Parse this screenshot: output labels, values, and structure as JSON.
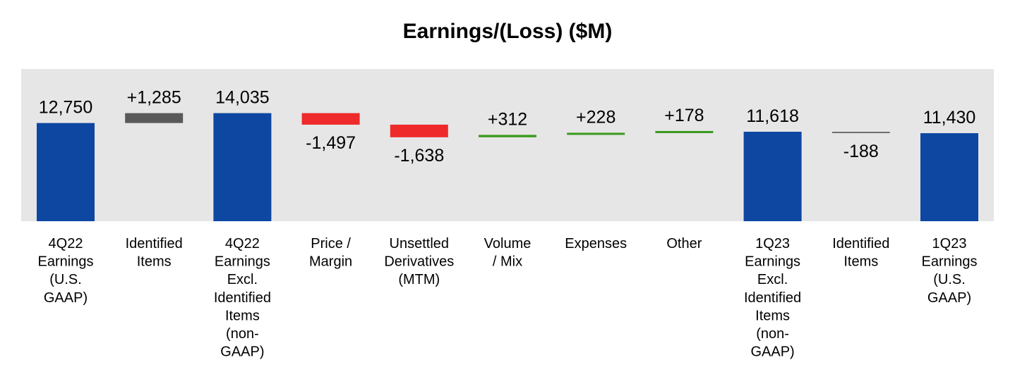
{
  "chart_data": {
    "type": "bar",
    "subtype": "waterfall",
    "title": "Earnings/(Loss) ($M)",
    "xlabel": "",
    "ylabel": "",
    "grid": false,
    "legend": "none",
    "colors": {
      "total": "#0d47a1",
      "identified": "#595959",
      "decrease": "#ee2a2a",
      "increase": "#3a9a1e",
      "neutral": "#6f6f6f",
      "plot_background": "#e6e6e6"
    },
    "bars": [
      {
        "category": [
          "4Q22",
          "Earnings",
          "(U.S.",
          "GAAP)"
        ],
        "kind": "total",
        "value": 12750,
        "label": "12,750"
      },
      {
        "category": [
          "Identified",
          "Items"
        ],
        "kind": "identified",
        "value": 1285,
        "label": "+1,285"
      },
      {
        "category": [
          "4Q22",
          "Earnings",
          "Excl.",
          "Identified",
          "Items",
          "(non-",
          "GAAP)"
        ],
        "kind": "total",
        "value": 14035,
        "label": "14,035"
      },
      {
        "category": [
          "Price /",
          "Margin"
        ],
        "kind": "decrease",
        "value": -1497,
        "label": "-1,497"
      },
      {
        "category": [
          "Unsettled",
          "Derivatives",
          "(MTM)"
        ],
        "kind": "decrease",
        "value": -1638,
        "label": "-1,638"
      },
      {
        "category": [
          "Volume",
          "/ Mix"
        ],
        "kind": "increase",
        "value": 312,
        "label": "+312"
      },
      {
        "category": [
          "Expenses"
        ],
        "kind": "increase",
        "value": 228,
        "label": "+228"
      },
      {
        "category": [
          "Other"
        ],
        "kind": "increase",
        "value": 178,
        "label": "+178"
      },
      {
        "category": [
          "1Q23",
          "Earnings",
          "Excl.",
          "Identified",
          "Items",
          "(non-",
          "GAAP)"
        ],
        "kind": "total",
        "value": 11618,
        "label": "11,618"
      },
      {
        "category": [
          "Identified",
          "Items"
        ],
        "kind": "neutral",
        "value": -188,
        "label": "-188"
      },
      {
        "category": [
          "1Q23",
          "Earnings",
          "(U.S.",
          "GAAP)"
        ],
        "kind": "total",
        "value": 11430,
        "label": "11,430"
      }
    ]
  }
}
